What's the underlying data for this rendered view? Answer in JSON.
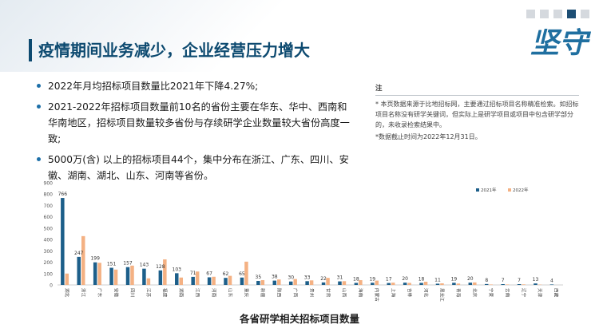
{
  "title": "疫情期间业务减少，企业经营压力增大",
  "bullets": [
    "2022年月均招标项目数量比2021年下降4.27%;",
    "2021-2022年招标项目数量前10名的省份主要在华东、华中、西南和华南地区，招标项目数量较多省份与存续研学企业数量较大省份高度一致;",
    "5000万(含) 以上的招标项目44个，集中分布在浙江、广东、四川、安徽、湖南、湖北、山东、河南等省份。"
  ],
  "note": {
    "label": "注",
    "text1": "* 本页数据来源于比地招标网，主要通过招标项目名称精准检索。如招标项目名称没有研学关键词，但实际上是研学项目或项目中包含研学部分的，未收录检索结果中。",
    "text2": "*数据截止时间为2022年12月31日。"
  },
  "logo_text": "坚守",
  "colors": {
    "accent": "#0d4a70",
    "series2021": "#1d5f8a",
    "series2022": "#f4b183"
  },
  "chart_data": {
    "type": "bar",
    "title": "",
    "xlabel": "各省研学相关招标项目数量",
    "ylabel": "",
    "ylim": [
      0,
      900
    ],
    "yticks": [
      0,
      100,
      200,
      300,
      400,
      500,
      600,
      700,
      800,
      900
    ],
    "grid": false,
    "legend": "top-right",
    "categories": [
      "湖北",
      "浙江",
      "广东",
      "安徽",
      "四川",
      "江苏",
      "福建",
      "湖南",
      "江西",
      "河南",
      "山东",
      "重庆",
      "新疆",
      "陕西",
      "广西",
      "贵州",
      "甘肃",
      "山西",
      "海南",
      "内蒙古",
      "上海",
      "吉林",
      "河北",
      "黑龙江",
      "青海",
      "北京",
      "宁夏",
      "云南",
      "辽宁",
      "天津",
      "西藏"
    ],
    "series": [
      {
        "name": "2021年",
        "values": [
          766,
          247,
          199,
          151,
          157,
          143,
          128,
          103,
          71,
          67,
          62,
          65,
          35,
          38,
          30,
          33,
          22,
          31,
          18,
          19,
          17,
          20,
          18,
          11,
          19,
          20,
          8,
          7,
          7,
          13,
          4
        ]
      },
      {
        "name": "2022年",
        "values": [
          100,
          430,
          195,
          135,
          170,
          58,
          225,
          65,
          118,
          72,
          80,
          205,
          42,
          48,
          52,
          40,
          62,
          33,
          42,
          38,
          20,
          18,
          28,
          14,
          12,
          22,
          4,
          4,
          5,
          3,
          0
        ]
      }
    ],
    "labels_2021": [
      766,
      247,
      199,
      151,
      157,
      143,
      128,
      103,
      71,
      67,
      62,
      65,
      35,
      38,
      30,
      33,
      22,
      31,
      18,
      19,
      17,
      20,
      18,
      11,
      19,
      20,
      8,
      7,
      7,
      13,
      4
    ]
  }
}
